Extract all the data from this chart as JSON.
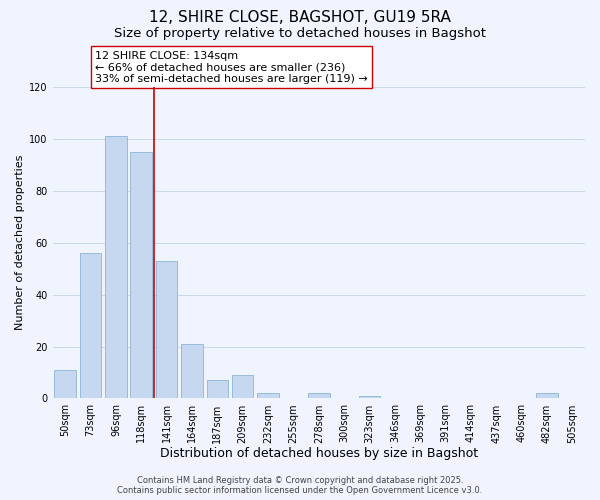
{
  "title": "12, SHIRE CLOSE, BAGSHOT, GU19 5RA",
  "subtitle": "Size of property relative to detached houses in Bagshot",
  "xlabel": "Distribution of detached houses by size in Bagshot",
  "ylabel": "Number of detached properties",
  "categories": [
    "50sqm",
    "73sqm",
    "96sqm",
    "118sqm",
    "141sqm",
    "164sqm",
    "187sqm",
    "209sqm",
    "232sqm",
    "255sqm",
    "278sqm",
    "300sqm",
    "323sqm",
    "346sqm",
    "369sqm",
    "391sqm",
    "414sqm",
    "437sqm",
    "460sqm",
    "482sqm",
    "505sqm"
  ],
  "bar_heights": [
    11,
    56,
    101,
    95,
    53,
    21,
    7,
    9,
    2,
    0,
    2,
    0,
    1,
    0,
    0,
    0,
    0,
    0,
    0,
    2,
    0
  ],
  "bar_color": "#c5d8f0",
  "bar_edge_color": "#8ab4d8",
  "grid_color": "#c8d8ea",
  "red_line_x": 3.5,
  "red_line_color": "#cc0000",
  "annotation_line1": "12 SHIRE CLOSE: 134sqm",
  "annotation_line2": "← 66% of detached houses are smaller (236)",
  "annotation_line3": "33% of semi-detached houses are larger (119) →",
  "ylim": [
    0,
    120
  ],
  "yticks": [
    0,
    20,
    40,
    60,
    80,
    100,
    120
  ],
  "background_color": "#f0f4ff",
  "footer_line1": "Contains HM Land Registry data © Crown copyright and database right 2025.",
  "footer_line2": "Contains public sector information licensed under the Open Government Licence v3.0.",
  "title_fontsize": 11,
  "subtitle_fontsize": 9.5,
  "xlabel_fontsize": 9,
  "ylabel_fontsize": 8,
  "tick_fontsize": 7,
  "annotation_fontsize": 8,
  "footer_fontsize": 6
}
